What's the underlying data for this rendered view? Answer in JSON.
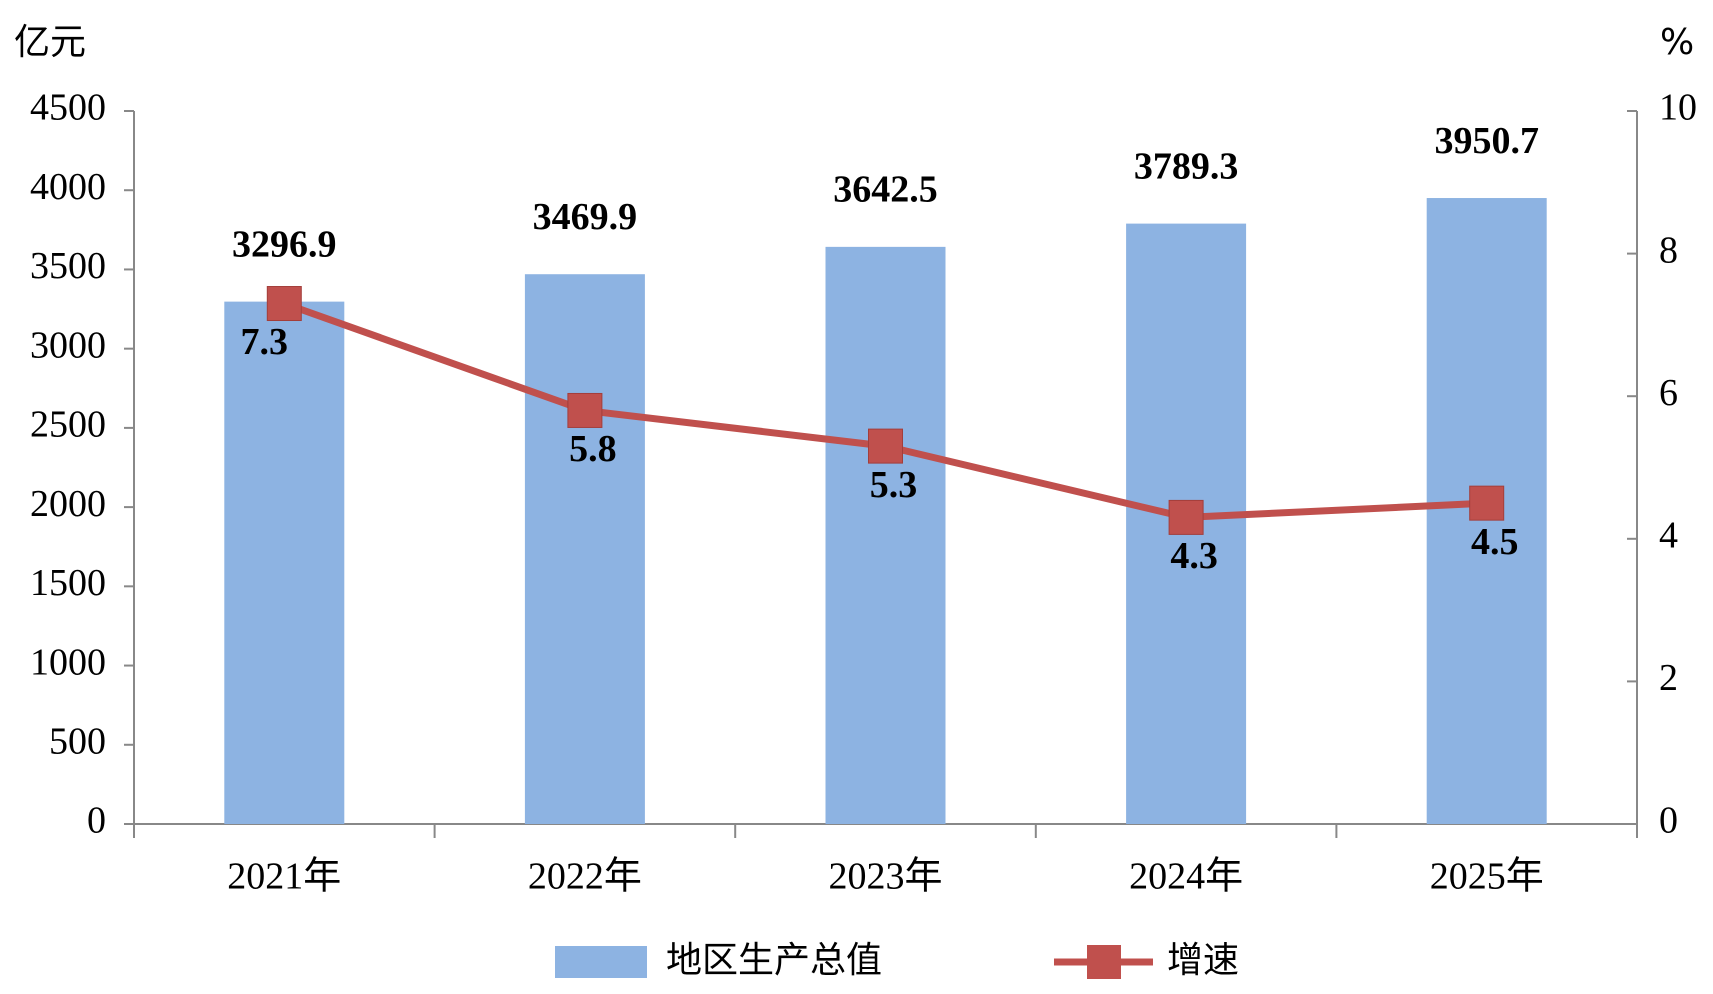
{
  "chart_data": {
    "type": "bar",
    "y_unit": "亿元",
    "y2_unit": "%",
    "categories": [
      "2021年",
      "2022年",
      "2023年",
      "2024年",
      "2025年"
    ],
    "series": [
      {
        "name": "地区生产总值",
        "type": "bar",
        "color": "#8db3e2",
        "values": [
          3296.9,
          3469.9,
          3642.5,
          3789.3,
          3950.7
        ]
      },
      {
        "name": "增速",
        "type": "line",
        "axis": "y2",
        "color": "#c0504d",
        "values": [
          7.3,
          5.8,
          5.3,
          4.3,
          4.5
        ]
      }
    ],
    "ylim": [
      0,
      4500
    ],
    "yticks": [
      0,
      500,
      1000,
      1500,
      2000,
      2500,
      3000,
      3500,
      4000,
      4500
    ],
    "y2lim": [
      0,
      10
    ],
    "y2ticks": [
      0,
      2,
      4,
      6,
      8,
      10
    ]
  }
}
